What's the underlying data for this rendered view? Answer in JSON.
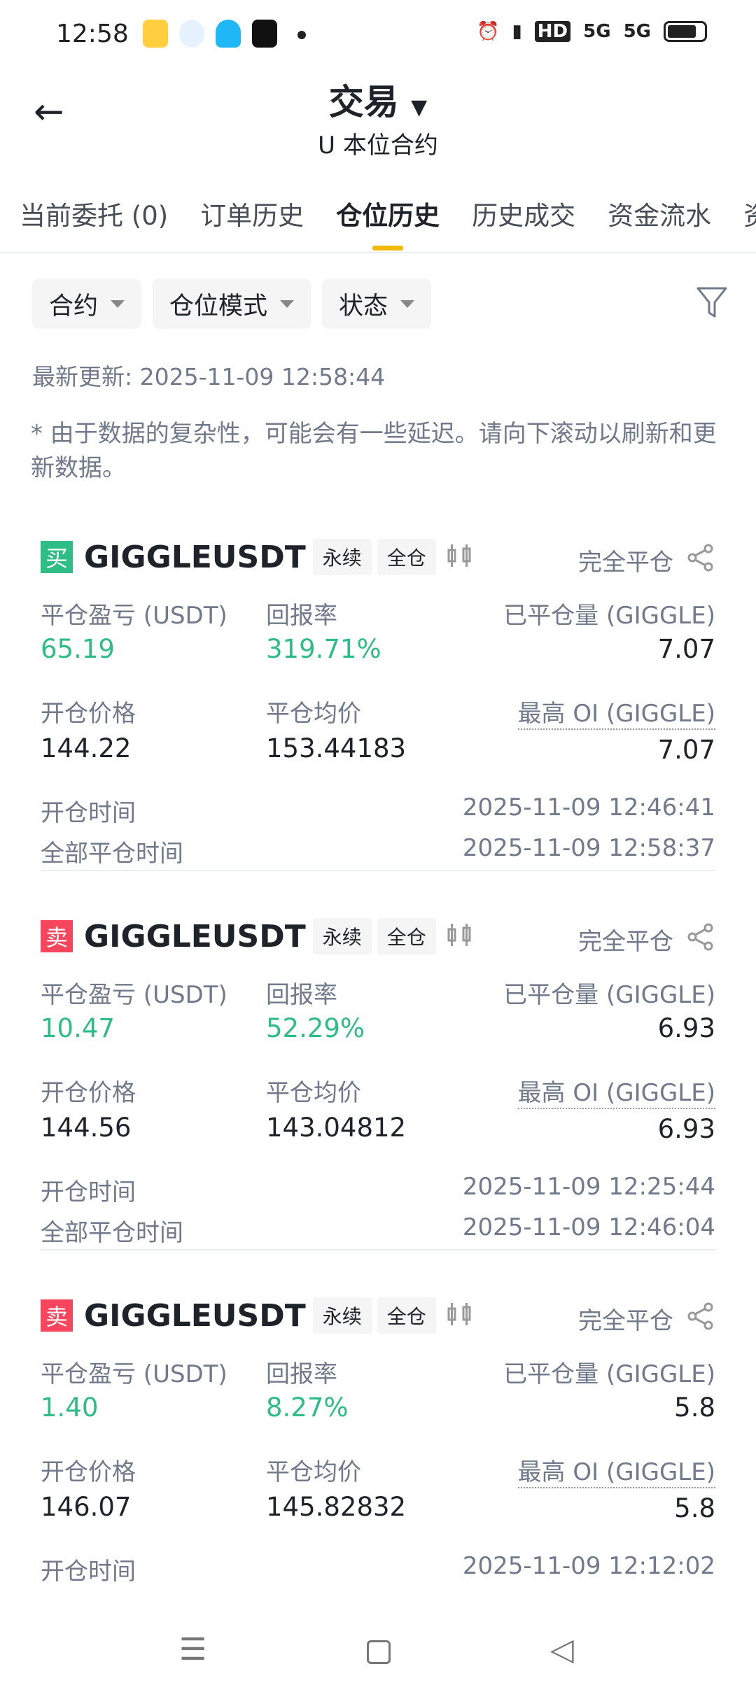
{
  "status_bar": {
    "time": "12:58",
    "icons": [
      "weibo-icon",
      "qq-browser-icon",
      "qq-icon",
      "douyin-icon",
      "dot-icon",
      "alarm-icon",
      "vibrate-icon",
      "hd-icon",
      "5g-signal-icon",
      "5g-signal-icon",
      "battery-icon"
    ],
    "hd": "HD",
    "net1": "5G",
    "net2": "5G"
  },
  "header": {
    "title": "交易",
    "subtitle": "U 本位合约"
  },
  "tabs": [
    {
      "label": "当前委托 (0)"
    },
    {
      "label": "订单历史"
    },
    {
      "label": "仓位历史",
      "active": true
    },
    {
      "label": "历史成交"
    },
    {
      "label": "资金流水"
    },
    {
      "label": "资"
    }
  ],
  "filters": [
    {
      "label": "合约"
    },
    {
      "label": "仓位模式"
    },
    {
      "label": "状态"
    }
  ],
  "last_update": "最新更新: 2025-11-09 12:58:44",
  "note": "* 由于数据的复杂性，可能会有一些延迟。请向下滚动以刷新和更新数据。",
  "labels": {
    "pnl": "平仓盈亏 (USDT)",
    "roi": "回报率",
    "closed_qty": "已平仓量 (GIGGLE)",
    "entry": "开仓价格",
    "avg_close": "平仓均价",
    "max_oi": "最高 OI (GIGGLE)",
    "open_time": "开仓时间",
    "close_time": "全部平仓时间"
  },
  "colors": {
    "buy": "#2ebd85",
    "sell": "#f6465d",
    "accent": "#f0b90b"
  },
  "positions": [
    {
      "side": "买",
      "symbol": "GIGGLEUSDT",
      "type": "永续",
      "margin": "全仓",
      "status": "完全平仓",
      "pnl": "65.19",
      "roi": "319.71%",
      "closed_qty": "7.07",
      "entry": "144.22",
      "avg_close": "153.44183",
      "max_oi": "7.07",
      "open_time": "2025-11-09 12:46:41",
      "close_time": "2025-11-09 12:58:37"
    },
    {
      "side": "卖",
      "symbol": "GIGGLEUSDT",
      "type": "永续",
      "margin": "全仓",
      "status": "完全平仓",
      "pnl": "10.47",
      "roi": "52.29%",
      "closed_qty": "6.93",
      "entry": "144.56",
      "avg_close": "143.04812",
      "max_oi": "6.93",
      "open_time": "2025-11-09 12:25:44",
      "close_time": "2025-11-09 12:46:04"
    },
    {
      "side": "卖",
      "symbol": "GIGGLEUSDT",
      "type": "永续",
      "margin": "全仓",
      "status": "完全平仓",
      "pnl": "1.40",
      "roi": "8.27%",
      "closed_qty": "5.8",
      "entry": "146.07",
      "avg_close": "145.82832",
      "max_oi": "5.8",
      "open_time": "2025-11-09 12:12:02"
    }
  ]
}
